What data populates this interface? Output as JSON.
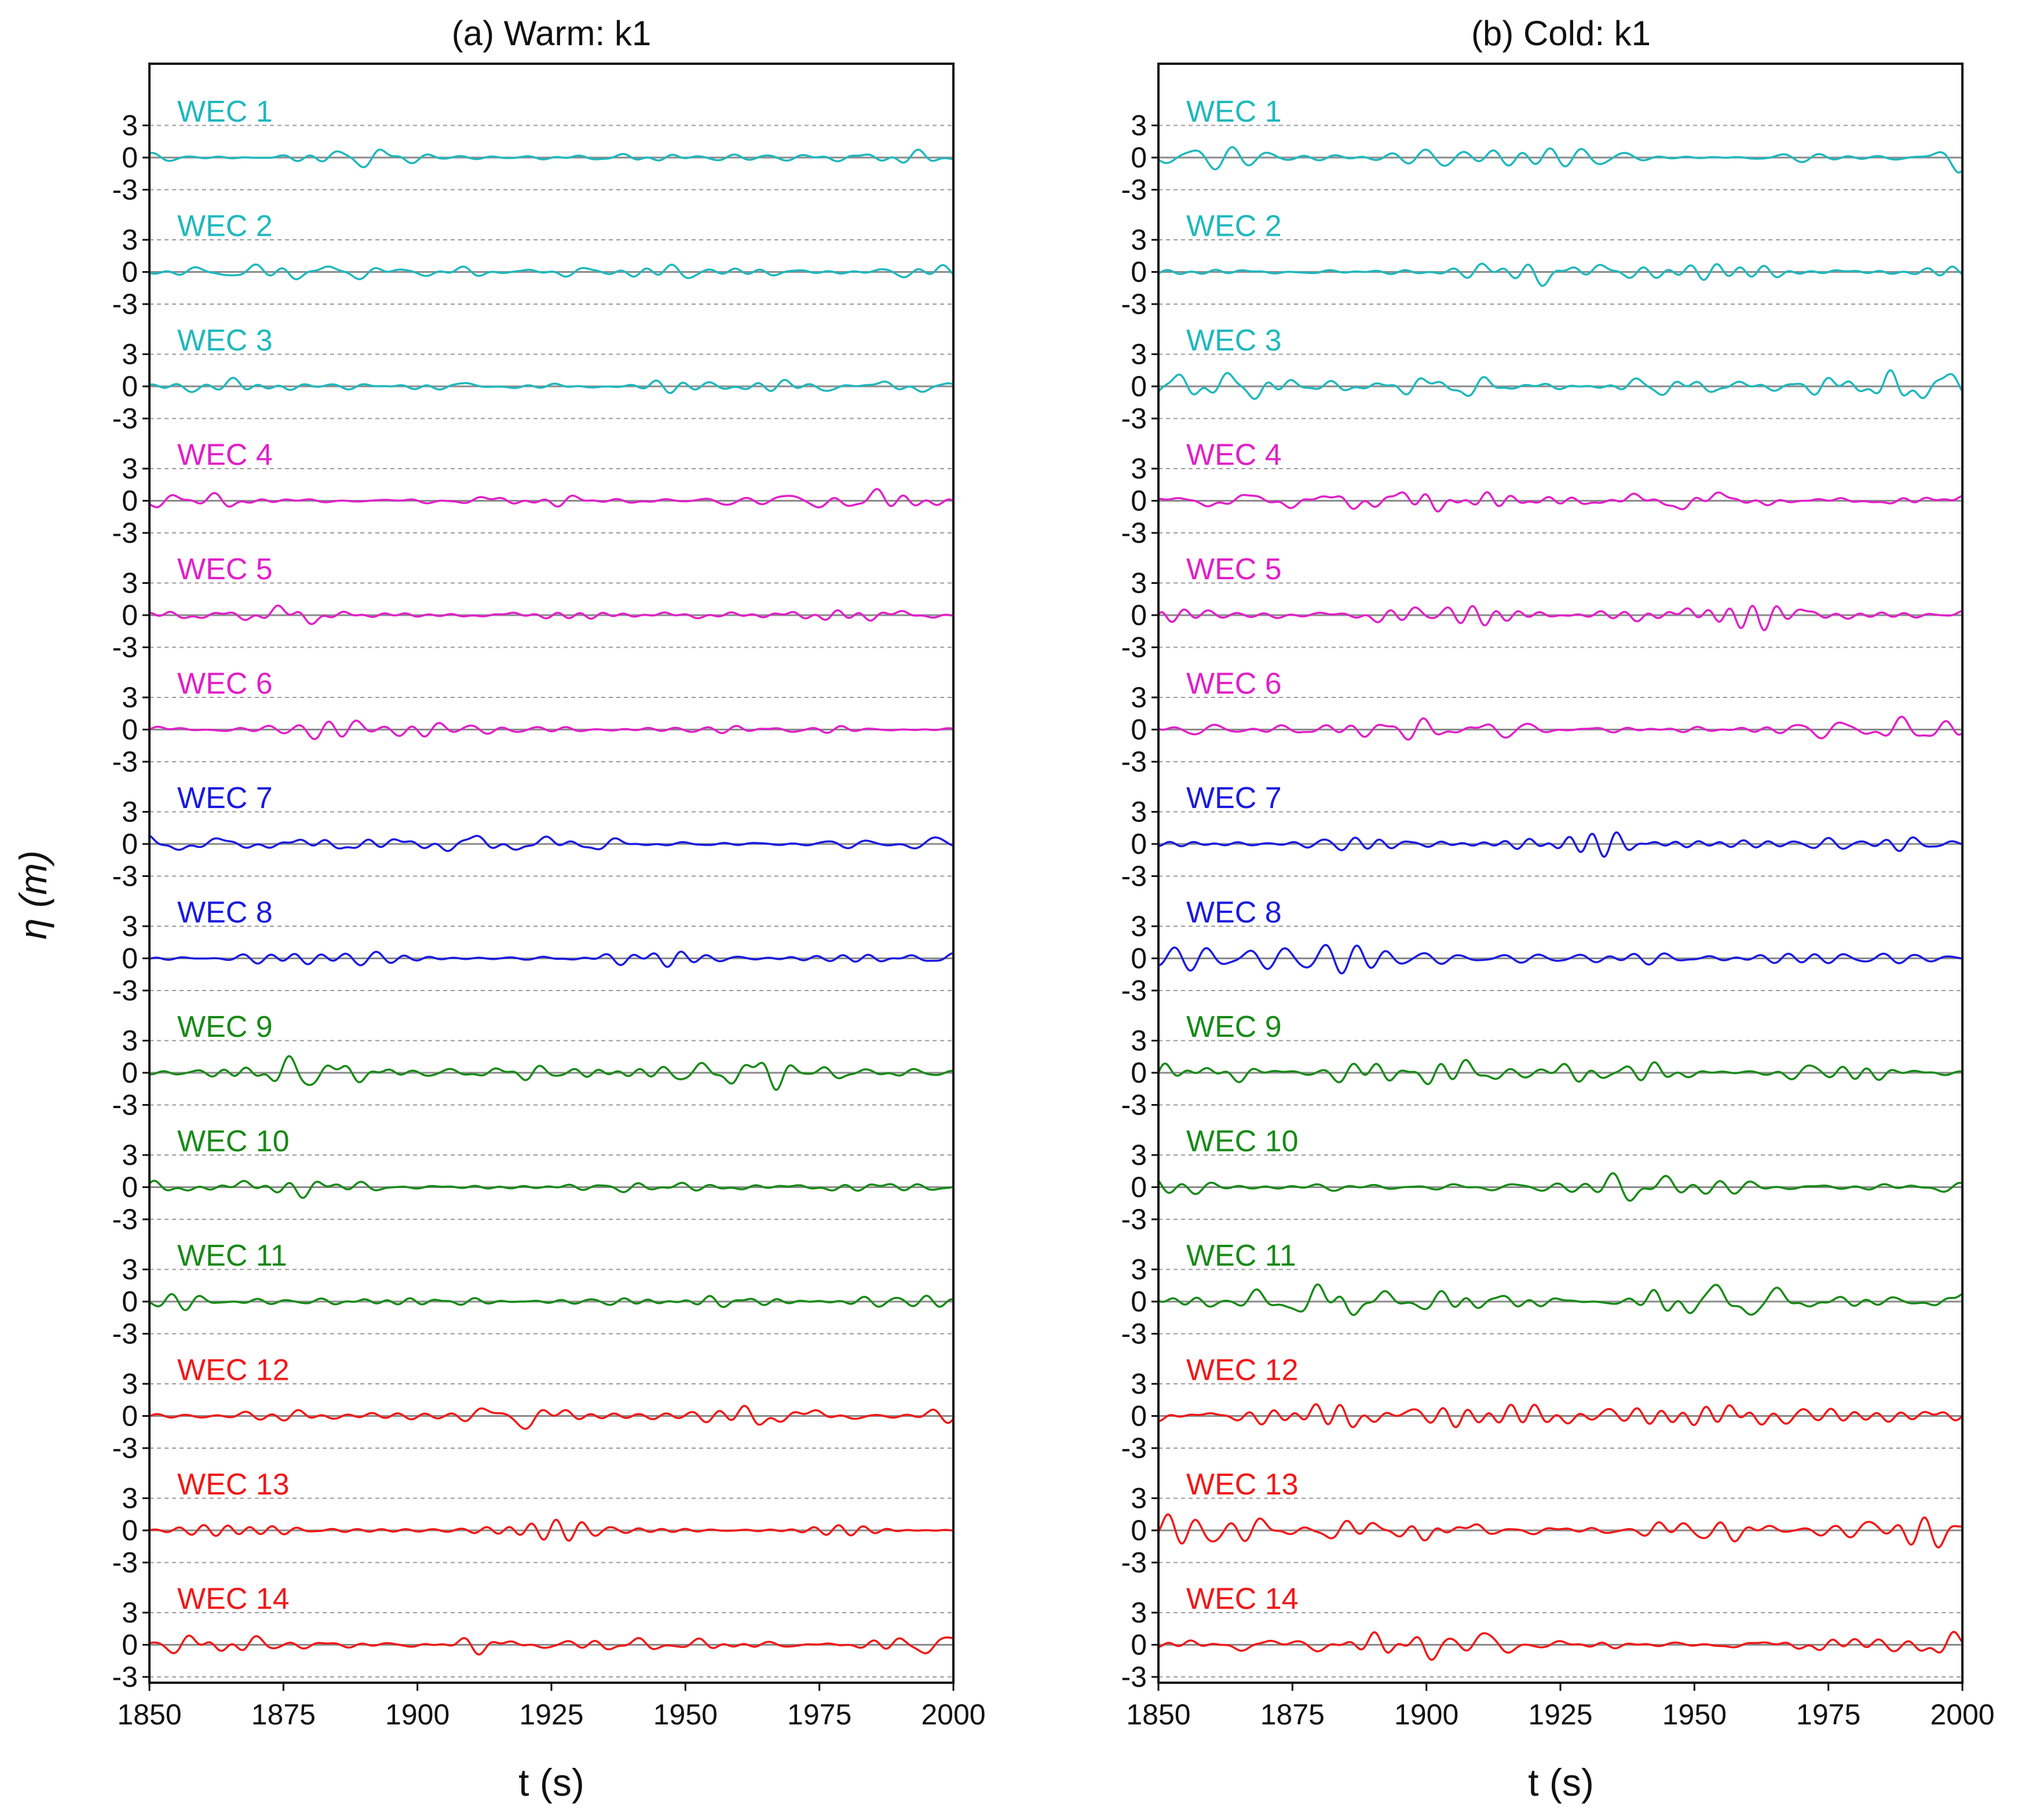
{
  "chart_data": [
    {
      "type": "line",
      "title": "(a) Warm: k1",
      "xlabel": "t (s)",
      "ylabel": "η (m)",
      "xlim": [
        1850,
        2000
      ],
      "xticks": [
        1850,
        1875,
        1900,
        1925,
        1950,
        1975,
        2000
      ],
      "yticks_per_track": [
        "3",
        "0",
        "-3"
      ],
      "ylim_per_track": [
        -3,
        3
      ],
      "grid": "dashed at ±3 m, solid zero line",
      "series": [
        {
          "name": "WEC 1",
          "color": "#1fb8bd",
          "amplitude_m": 0.9,
          "seed": 11
        },
        {
          "name": "WEC 2",
          "color": "#1fb8bd",
          "amplitude_m": 0.7,
          "seed": 12
        },
        {
          "name": "WEC 3",
          "color": "#1fb8bd",
          "amplitude_m": 0.8,
          "seed": 13
        },
        {
          "name": "WEC 4",
          "color": "#e020c8",
          "amplitude_m": 1.1,
          "seed": 14
        },
        {
          "name": "WEC 5",
          "color": "#e020c8",
          "amplitude_m": 0.9,
          "seed": 15
        },
        {
          "name": "WEC 6",
          "color": "#e020c8",
          "amplitude_m": 0.9,
          "seed": 16
        },
        {
          "name": "WEC 7",
          "color": "#1a1ae0",
          "amplitude_m": 0.8,
          "seed": 17
        },
        {
          "name": "WEC 8",
          "color": "#1a1ae0",
          "amplitude_m": 0.8,
          "seed": 18
        },
        {
          "name": "WEC 9",
          "color": "#178a17",
          "amplitude_m": 1.6,
          "seed": 19
        },
        {
          "name": "WEC 10",
          "color": "#178a17",
          "amplitude_m": 1.0,
          "seed": 20
        },
        {
          "name": "WEC 11",
          "color": "#178a17",
          "amplitude_m": 0.8,
          "seed": 21
        },
        {
          "name": "WEC 12",
          "color": "#f01818",
          "amplitude_m": 1.2,
          "seed": 22
        },
        {
          "name": "WEC 13",
          "color": "#f01818",
          "amplitude_m": 1.0,
          "seed": 23
        },
        {
          "name": "WEC 14",
          "color": "#f01818",
          "amplitude_m": 0.9,
          "seed": 24
        }
      ]
    },
    {
      "type": "line",
      "title": "(b) Cold: k1",
      "xlabel": "t (s)",
      "ylabel": "η (m)",
      "xlim": [
        1850,
        2000
      ],
      "xticks": [
        1850,
        1875,
        1900,
        1925,
        1950,
        1975,
        2000
      ],
      "yticks_per_track": [
        "3",
        "0",
        "-3"
      ],
      "ylim_per_track": [
        -3,
        3
      ],
      "grid": "dashed at ±3 m, solid zero line",
      "series": [
        {
          "name": "WEC 1",
          "color": "#1fb8bd",
          "amplitude_m": 1.4,
          "seed": 31
        },
        {
          "name": "WEC 2",
          "color": "#1fb8bd",
          "amplitude_m": 1.3,
          "seed": 32
        },
        {
          "name": "WEC 3",
          "color": "#1fb8bd",
          "amplitude_m": 1.5,
          "seed": 33
        },
        {
          "name": "WEC 4",
          "color": "#e020c8",
          "amplitude_m": 1.0,
          "seed": 34
        },
        {
          "name": "WEC 5",
          "color": "#e020c8",
          "amplitude_m": 1.4,
          "seed": 35
        },
        {
          "name": "WEC 6",
          "color": "#e020c8",
          "amplitude_m": 1.2,
          "seed": 36
        },
        {
          "name": "WEC 7",
          "color": "#1a1ae0",
          "amplitude_m": 1.2,
          "seed": 37
        },
        {
          "name": "WEC 8",
          "color": "#1a1ae0",
          "amplitude_m": 1.4,
          "seed": 38
        },
        {
          "name": "WEC 9",
          "color": "#178a17",
          "amplitude_m": 1.2,
          "seed": 39
        },
        {
          "name": "WEC 10",
          "color": "#178a17",
          "amplitude_m": 1.3,
          "seed": 40
        },
        {
          "name": "WEC 11",
          "color": "#178a17",
          "amplitude_m": 1.6,
          "seed": 41
        },
        {
          "name": "WEC 12",
          "color": "#f01818",
          "amplitude_m": 1.1,
          "seed": 42
        },
        {
          "name": "WEC 13",
          "color": "#f01818",
          "amplitude_m": 1.6,
          "seed": 43
        },
        {
          "name": "WEC 14",
          "color": "#f01818",
          "amplitude_m": 1.4,
          "seed": 44
        }
      ]
    }
  ]
}
